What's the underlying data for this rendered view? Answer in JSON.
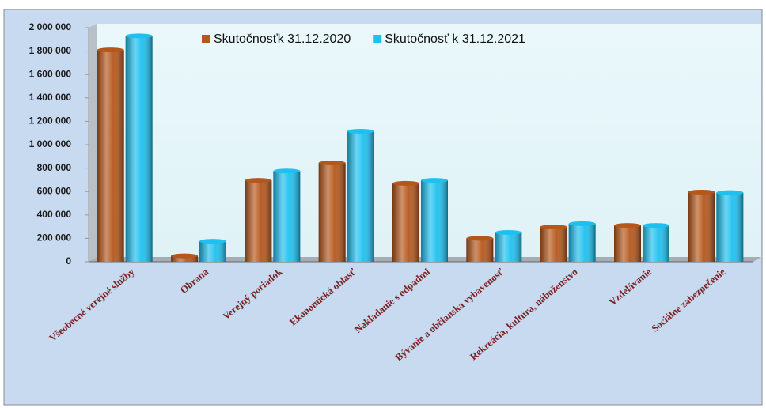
{
  "chart_data": {
    "type": "bar",
    "categories": [
      "Všeobecné verejné služby",
      "Obrana",
      "Verejný poriadok",
      "Ekonomická oblasť",
      "Nakladanie s odpadmi",
      "Bývanie a občianska vybavenosť",
      "Rekreácia, kultúra, náboženstvo",
      "Vzdelávanie",
      "Sociálne zabezpečenie"
    ],
    "series": [
      {
        "name": "Skutočnosťk 31.12.2020",
        "color": "#b5561a",
        "values": [
          1810000,
          50000,
          695000,
          845000,
          670000,
          200000,
          297000,
          310000,
          595000
        ]
      },
      {
        "name": "Skutočnosť k 31.12.2021",
        "color": "#1ec0f0",
        "values": [
          1930000,
          175000,
          775000,
          1115000,
          695000,
          250000,
          325000,
          310000,
          590000
        ]
      }
    ],
    "ylim": [
      0,
      2000000
    ],
    "yticks": [
      0,
      {
        "value": 200000,
        "label": "200 000"
      },
      {
        "value": 400000,
        "label": "400 000"
      },
      {
        "value": 600000,
        "label": "600 000"
      },
      {
        "value": 800000,
        "label": "800 000"
      },
      {
        "value": 1000000,
        "label": "1 000 000"
      },
      {
        "value": 1200000,
        "label": "1 200 000"
      },
      {
        "value": 1400000,
        "label": "1 400 000"
      },
      {
        "value": 1600000,
        "label": "1 600 000"
      },
      {
        "value": 1800000,
        "label": "1 800 000"
      },
      {
        "value": 2000000,
        "label": "2 000 000"
      }
    ],
    "grid": false
  }
}
